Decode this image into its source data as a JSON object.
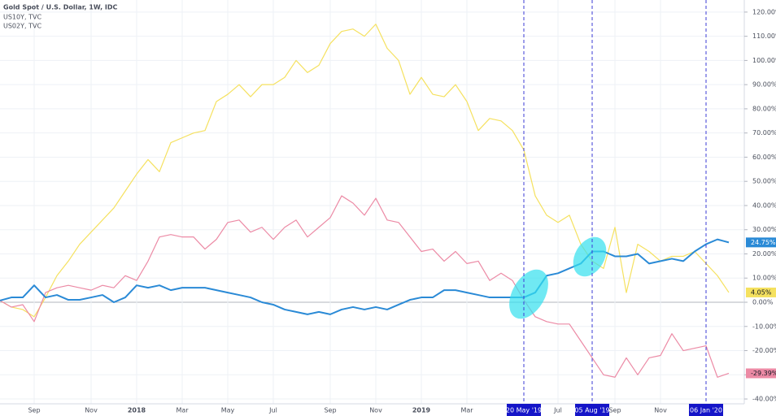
{
  "chart_data": {
    "type": "line",
    "legend": [
      "Gold Spot / U.S. Dollar, 1W, IDC",
      "US10Y, TVC",
      "US02Y, TVC"
    ],
    "categories": [
      null,
      null,
      null,
      "Sep",
      null,
      null,
      null,
      null,
      "Nov",
      null,
      null,
      null,
      "2018",
      null,
      null,
      null,
      "Mar",
      null,
      null,
      null,
      "May",
      null,
      null,
      null,
      "Jul",
      null,
      null,
      null,
      null,
      "Sep",
      null,
      null,
      null,
      "Nov",
      null,
      null,
      null,
      "2019",
      null,
      null,
      null,
      "Mar",
      null,
      null,
      null,
      null,
      "20 May '19",
      null,
      null,
      "Jul",
      null,
      null,
      "05 Aug '19",
      null,
      "Sep",
      null,
      null,
      null,
      "Nov",
      null,
      null,
      null,
      "06 Jan '20",
      null,
      null
    ],
    "highlighted": [
      46,
      52,
      62
    ],
    "series": [
      {
        "name": "US02Y, TVC",
        "color": "#f5e15f",
        "label_text": "#131722",
        "values": [
          0.7,
          -2,
          -3,
          -6,
          2,
          11,
          17,
          24,
          29,
          34,
          39,
          46,
          53,
          59,
          54,
          66,
          68,
          70,
          71,
          83,
          86,
          90,
          85,
          90,
          90,
          93,
          100,
          95,
          98,
          107,
          112,
          113,
          110,
          115,
          105,
          100,
          86,
          93,
          86,
          85,
          90,
          83,
          71,
          76,
          75,
          71,
          63,
          44,
          36,
          33,
          36,
          24,
          17,
          14,
          31,
          4,
          24,
          21,
          17,
          19,
          19,
          21,
          16,
          11,
          4.05
        ],
        "last_label": "4.05%"
      },
      {
        "name": "US10Y, TVC",
        "color": "#ec8aa5",
        "label_text": "#131722",
        "values": [
          0.7,
          -2,
          -1,
          -8,
          4,
          6,
          7,
          6,
          5,
          7,
          6,
          11,
          9,
          17,
          27,
          28,
          27,
          27,
          22,
          26,
          33,
          34,
          29,
          31,
          26,
          31,
          34,
          27,
          31,
          35,
          44,
          41,
          36,
          43,
          34,
          33,
          27,
          21,
          22,
          17,
          21,
          16,
          17,
          9,
          12,
          9,
          1,
          -6,
          -8,
          -9,
          -9,
          -16,
          -23,
          -30,
          -31,
          -23,
          -30,
          -23,
          -22,
          -13,
          -20,
          -19,
          -18,
          -31,
          -29.39
        ],
        "last_label": "-29.39%"
      },
      {
        "name": "Gold Spot / U.S. Dollar, 1W, IDC",
        "color": "#2a8ad6",
        "label_text": "#ffffff",
        "values": [
          0.7,
          2,
          2,
          7,
          2,
          3,
          1,
          1,
          2,
          3,
          0,
          2,
          7,
          6,
          7,
          5,
          6,
          6,
          6,
          5,
          4,
          3,
          2,
          0,
          -1,
          -3,
          -4,
          -5,
          -4,
          -5,
          -3,
          -2,
          -3,
          -2,
          -3,
          -1,
          1,
          2,
          2,
          5,
          5,
          4,
          3,
          2,
          2,
          2,
          2,
          4,
          11,
          12,
          14,
          16,
          21,
          21,
          19,
          19,
          20,
          16,
          17,
          18,
          17,
          21,
          24,
          26,
          24.75
        ],
        "last_label": "24.75%"
      }
    ],
    "ylim": [
      -42,
      125
    ],
    "yticks": [
      {
        "value": -40,
        "label": "-40.00%"
      },
      {
        "value": -30,
        "label": "-30.00%"
      },
      {
        "value": -20,
        "label": "-20.00%"
      },
      {
        "value": -10,
        "label": "-10.00%"
      },
      {
        "value": 0,
        "label": "0.00%"
      },
      {
        "value": 10,
        "label": "10.00%"
      },
      {
        "value": 20,
        "label": "20.00%"
      },
      {
        "value": 30,
        "label": "30.00%"
      },
      {
        "value": 40,
        "label": "40.00%"
      },
      {
        "value": 50,
        "label": "50.00%"
      },
      {
        "value": 60,
        "label": "60.00%"
      },
      {
        "value": 70,
        "label": "70.00%"
      },
      {
        "value": 80,
        "label": "80.00%"
      },
      {
        "value": 90,
        "label": "90.00%"
      },
      {
        "value": 100,
        "label": "100.00%"
      },
      {
        "value": 110,
        "label": "110.00%"
      },
      {
        "value": 120,
        "label": "120.00%"
      }
    ],
    "grid": true
  }
}
